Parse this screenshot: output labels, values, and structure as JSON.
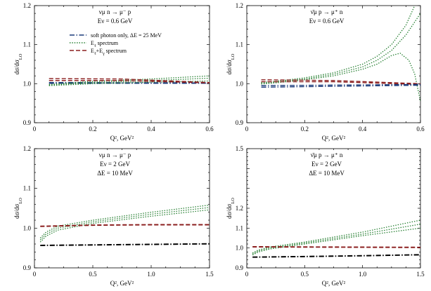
{
  "colors": {
    "soft": "#1a3a7a",
    "ee": "#1e7b2a",
    "eeg": "#8b1e1e",
    "black": "#000000"
  },
  "chart_data": [
    {
      "type": "line",
      "panel": "top-left",
      "title_lines": [
        "ν_μ n → μ⁻ p",
        "E_ν = 0.6 GeV"
      ],
      "xlabel": "Q², GeV²",
      "ylabel": "dσ/dσ_LO",
      "xlim": [
        0,
        0.6
      ],
      "ylim": [
        0.9,
        1.2
      ],
      "xticks": [
        0,
        0.2,
        0.4,
        0.6
      ],
      "xtick_labels": [
        "0",
        "0.2",
        "0.4",
        "0.6"
      ],
      "yticks": [
        0.9,
        1.0,
        1.1,
        1.2
      ],
      "ytick_labels": [
        "0.9",
        "1.0",
        "1.1",
        "1.2"
      ],
      "legend": {
        "placement": "upper-left",
        "entries": [
          {
            "label": "soft photon only, ΔE = 25 MeV",
            "style": "dashdot",
            "color_key": "soft"
          },
          {
            "label": "E_ℓ spectrum",
            "style": "dotted",
            "color_key": "ee"
          },
          {
            "label": "E_ℓ+E_γ spectrum",
            "style": "dashed",
            "color_key": "eeg"
          }
        ]
      },
      "series": [
        {
          "style": "dashdot",
          "color_key": "soft",
          "x": [
            0.05,
            0.6
          ],
          "y": [
            1.003,
            1.002
          ]
        },
        {
          "style": "dashdot",
          "color_key": "soft",
          "x": [
            0.05,
            0.6
          ],
          "y": [
            1.001,
            1.001
          ]
        },
        {
          "style": "dotted",
          "color_key": "ee",
          "x": [
            0.05,
            0.2,
            0.4,
            0.6
          ],
          "y": [
            0.998,
            1.006,
            1.012,
            1.02
          ]
        },
        {
          "style": "dotted",
          "color_key": "ee",
          "x": [
            0.05,
            0.2,
            0.4,
            0.6
          ],
          "y": [
            0.996,
            1.003,
            1.008,
            1.014
          ]
        },
        {
          "style": "dotted",
          "color_key": "ee",
          "x": [
            0.05,
            0.2,
            0.4,
            0.6
          ],
          "y": [
            0.995,
            1.0,
            1.004,
            1.007
          ]
        },
        {
          "style": "dashed",
          "color_key": "eeg",
          "x": [
            0.05,
            0.3,
            0.6
          ],
          "y": [
            1.013,
            1.012,
            1.003
          ]
        },
        {
          "style": "dashed",
          "color_key": "eeg",
          "x": [
            0.05,
            0.3,
            0.6
          ],
          "y": [
            1.008,
            1.008,
            1.002
          ]
        }
      ]
    },
    {
      "type": "line",
      "panel": "top-right",
      "title_lines": [
        "ν̄_μ p → μ⁺ n",
        "E_ν = 0.6 GeV"
      ],
      "xlabel": "Q², GeV²",
      "ylabel": "dσ/dσ_LO",
      "xlim": [
        0,
        0.6
      ],
      "ylim": [
        0.9,
        1.2
      ],
      "xticks": [
        0,
        0.2,
        0.4,
        0.6
      ],
      "xtick_labels": [
        "0",
        "0.2",
        "0.4",
        "0.6"
      ],
      "yticks": [
        0.9,
        1.0,
        1.1,
        1.2
      ],
      "ytick_labels": [
        "0.9",
        "1.0",
        "1.1",
        "1.2"
      ],
      "series": [
        {
          "style": "dotted",
          "color_key": "ee",
          "x": [
            0.05,
            0.1,
            0.2,
            0.3,
            0.4,
            0.45,
            0.5,
            0.55,
            0.58
          ],
          "y": [
            1.003,
            1.006,
            1.015,
            1.028,
            1.05,
            1.07,
            1.1,
            1.15,
            1.2
          ]
        },
        {
          "style": "dotted",
          "color_key": "ee",
          "x": [
            0.05,
            0.1,
            0.2,
            0.3,
            0.4,
            0.45,
            0.5,
            0.55,
            0.6
          ],
          "y": [
            1.001,
            1.004,
            1.012,
            1.024,
            1.043,
            1.06,
            1.085,
            1.125,
            1.18
          ]
        },
        {
          "style": "dotted",
          "color_key": "ee",
          "x": [
            0.05,
            0.1,
            0.2,
            0.3,
            0.4,
            0.45,
            0.5,
            0.53,
            0.56,
            0.58,
            0.6
          ],
          "y": [
            0.999,
            1.002,
            1.01,
            1.02,
            1.037,
            1.05,
            1.072,
            1.078,
            1.06,
            1.025,
            0.955
          ]
        },
        {
          "style": "dashed",
          "color_key": "eeg",
          "x": [
            0.05,
            0.3,
            0.6
          ],
          "y": [
            1.01,
            1.008,
            1.0
          ]
        },
        {
          "style": "dashed",
          "color_key": "eeg",
          "x": [
            0.05,
            0.3,
            0.6
          ],
          "y": [
            1.005,
            1.005,
            0.998
          ]
        },
        {
          "style": "dashdot",
          "color_key": "soft",
          "x": [
            0.05,
            0.6
          ],
          "y": [
            0.995,
            0.998
          ]
        },
        {
          "style": "dashdot",
          "color_key": "soft",
          "x": [
            0.05,
            0.6
          ],
          "y": [
            0.991,
            0.996
          ]
        }
      ]
    },
    {
      "type": "line",
      "panel": "bottom-left",
      "title_lines": [
        "ν_μ n → μ⁻ p",
        "E_ν = 2 GeV",
        "ΔE = 10 MeV"
      ],
      "xlabel": "Q², GeV²",
      "ylabel": "dσ/dσ_LO",
      "xlim": [
        0,
        1.5
      ],
      "ylim": [
        0.9,
        1.2
      ],
      "xticks": [
        0,
        0.5,
        1.0,
        1.5
      ],
      "xtick_labels": [
        "0",
        "0.5",
        "1.0",
        "1.5"
      ],
      "yticks": [
        0.9,
        1.0,
        1.1,
        1.2
      ],
      "ytick_labels": [
        "0.9",
        "1.0",
        "1.1",
        "1.2"
      ],
      "series": [
        {
          "style": "dotted",
          "color_key": "ee",
          "x": [
            0.05,
            0.1,
            0.2,
            0.5,
            1.0,
            1.5
          ],
          "y": [
            0.975,
            0.99,
            1.005,
            1.02,
            1.04,
            1.058
          ]
        },
        {
          "style": "dotted",
          "color_key": "ee",
          "x": [
            0.05,
            0.1,
            0.2,
            0.5,
            1.0,
            1.5
          ],
          "y": [
            0.97,
            0.985,
            1.0,
            1.016,
            1.035,
            1.052
          ]
        },
        {
          "style": "dotted",
          "color_key": "ee",
          "x": [
            0.05,
            0.1,
            0.2,
            0.5,
            1.0,
            1.5
          ],
          "y": [
            0.965,
            0.98,
            0.995,
            1.012,
            1.03,
            1.046
          ]
        },
        {
          "style": "dashed",
          "color_key": "eeg",
          "x": [
            0.05,
            0.5,
            1.0,
            1.5
          ],
          "y": [
            1.005,
            1.008,
            1.009,
            1.009
          ]
        },
        {
          "style": "dashed",
          "color_key": "eeg",
          "x": [
            0.05,
            0.5,
            1.0,
            1.5
          ],
          "y": [
            1.004,
            1.007,
            1.008,
            1.008
          ]
        },
        {
          "style": "dashdot",
          "color_key": "black",
          "x": [
            0.05,
            1.5
          ],
          "y": [
            0.957,
            0.961
          ]
        },
        {
          "style": "dashdot",
          "color_key": "black",
          "x": [
            0.05,
            1.5
          ],
          "y": [
            0.956,
            0.96
          ]
        }
      ]
    },
    {
      "type": "line",
      "panel": "bottom-right",
      "title_lines": [
        "ν̄_μ p → μ⁺ n",
        "E_ν = 2 GeV",
        "ΔE = 10 MeV"
      ],
      "xlabel": "Q², GeV²",
      "ylabel": "dσ/dσ_LO",
      "xlim": [
        0,
        1.5
      ],
      "ylim": [
        0.9,
        1.5
      ],
      "xticks": [
        0,
        0.5,
        1.0,
        1.5
      ],
      "xtick_labels": [
        "0",
        "0.5",
        "1.0",
        "1.5"
      ],
      "yticks": [
        0.9,
        1.0,
        1.1,
        1.2,
        1.3,
        1.4,
        1.5
      ],
      "ytick_labels": [
        "0.9",
        "1.0",
        "1.1",
        "1.2",
        "",
        "",
        "1.5"
      ],
      "series": [
        {
          "style": "dotted",
          "color_key": "ee",
          "x": [
            0.05,
            0.1,
            0.2,
            0.5,
            1.0,
            1.5
          ],
          "y": [
            0.975,
            0.99,
            1.005,
            1.03,
            1.08,
            1.14
          ]
        },
        {
          "style": "dotted",
          "color_key": "ee",
          "x": [
            0.05,
            0.1,
            0.2,
            0.5,
            1.0,
            1.5
          ],
          "y": [
            0.97,
            0.985,
            1.0,
            1.025,
            1.07,
            1.12
          ]
        },
        {
          "style": "dotted",
          "color_key": "ee",
          "x": [
            0.05,
            0.1,
            0.2,
            0.5,
            1.0,
            1.5
          ],
          "y": [
            0.965,
            0.98,
            0.995,
            1.02,
            1.062,
            1.1
          ]
        },
        {
          "style": "dashed",
          "color_key": "eeg",
          "x": [
            0.05,
            0.5,
            1.0,
            1.5
          ],
          "y": [
            1.007,
            1.006,
            1.005,
            1.004
          ]
        },
        {
          "style": "dashed",
          "color_key": "eeg",
          "x": [
            0.05,
            0.5,
            1.0,
            1.5
          ],
          "y": [
            1.005,
            1.004,
            1.003,
            1.002
          ]
        },
        {
          "style": "dashdot",
          "color_key": "black",
          "x": [
            0.05,
            0.5,
            1.0,
            1.5
          ],
          "y": [
            0.955,
            0.958,
            0.962,
            0.967
          ]
        },
        {
          "style": "dashdot",
          "color_key": "black",
          "x": [
            0.05,
            0.5,
            1.0,
            1.5
          ],
          "y": [
            0.953,
            0.956,
            0.96,
            0.965
          ]
        }
      ]
    }
  ]
}
